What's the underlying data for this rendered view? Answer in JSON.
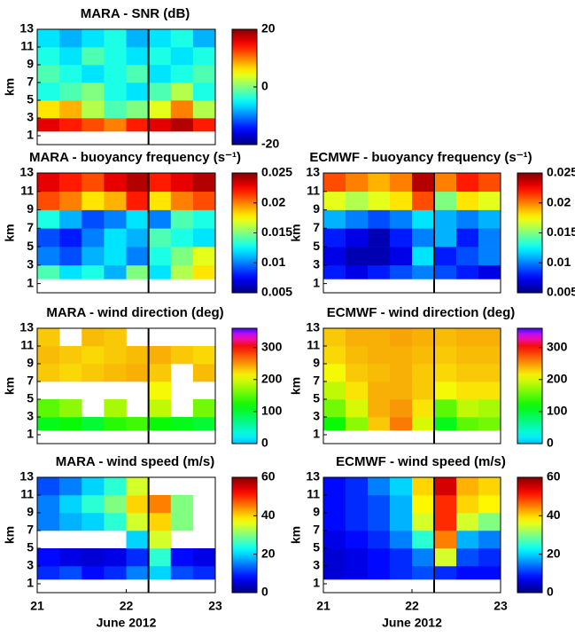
{
  "chart_data": [
    {
      "type": "heatmap",
      "title": "MARA - SNR (dB)",
      "ylabel": "km",
      "ylim": [
        0,
        13
      ],
      "yticks": [
        1,
        3,
        5,
        7,
        9,
        11,
        13
      ],
      "xlim": [
        21,
        23
      ],
      "xbins": [
        21,
        21.25,
        21.5,
        21.75,
        22,
        22.25,
        22.5,
        22.75,
        23
      ],
      "ybins": [
        1.5,
        3,
        5,
        7,
        9,
        11,
        13
      ],
      "z": [
        [
          16,
          14,
          12,
          10,
          14,
          16,
          18,
          14
        ],
        [
          6,
          8,
          2,
          -2,
          0,
          4,
          10,
          2
        ],
        [
          -4,
          -2,
          0,
          -4,
          -6,
          -2,
          2,
          -4
        ],
        [
          -2,
          -4,
          -6,
          -4,
          -2,
          -6,
          -4,
          -2
        ],
        [
          -4,
          -6,
          -2,
          -4,
          -6,
          -4,
          -6,
          -4
        ],
        [
          -6,
          -8,
          -6,
          -4,
          -8,
          -6,
          -4,
          -8
        ]
      ],
      "clim": [
        -20,
        20
      ],
      "cticks": [
        -20,
        0,
        20
      ],
      "colormap": "jet",
      "vline": 22.25
    },
    {
      "type": "heatmap",
      "title": "MARA - buoyancy frequency (s⁻¹)",
      "ylabel": "km",
      "ylim": [
        0,
        13
      ],
      "yticks": [
        1,
        3,
        5,
        7,
        9,
        11,
        13
      ],
      "xlim": [
        21,
        23
      ],
      "xbins": [
        21,
        21.25,
        21.5,
        21.75,
        22,
        22.25,
        22.5,
        22.75,
        23
      ],
      "ybins": [
        1.5,
        3,
        5,
        7,
        9,
        11,
        13
      ],
      "z": [
        [
          0.014,
          0.012,
          0.013,
          0.011,
          0.015,
          0.012,
          0.016,
          0.018
        ],
        [
          0.01,
          0.009,
          0.011,
          0.012,
          0.01,
          0.013,
          0.015,
          0.017
        ],
        [
          0.009,
          0.008,
          0.01,
          0.012,
          0.011,
          0.014,
          0.013,
          0.012
        ],
        [
          0.013,
          0.011,
          0.009,
          0.01,
          0.012,
          0.01,
          0.014,
          0.013
        ],
        [
          0.021,
          0.02,
          0.018,
          0.019,
          0.022,
          0.018,
          0.02,
          0.021
        ],
        [
          0.023,
          0.022,
          0.021,
          0.023,
          0.024,
          0.022,
          0.023,
          0.024
        ]
      ],
      "clim": [
        0.005,
        0.025
      ],
      "cticks": [
        0.005,
        0.01,
        0.015,
        0.02,
        0.025
      ],
      "colormap": "jet",
      "vline": 22.25
    },
    {
      "type": "heatmap",
      "title": "ECMWF - buoyancy frequency (s⁻¹)",
      "ylabel": "km",
      "ylim": [
        0,
        13
      ],
      "yticks": [
        1,
        3,
        5,
        7,
        9,
        11,
        13
      ],
      "xlim": [
        21,
        23
      ],
      "xbins": [
        21,
        21.25,
        21.5,
        21.75,
        22,
        22.25,
        22.5,
        22.75,
        23
      ],
      "ybins": [
        1.5,
        3,
        5,
        7,
        9,
        11,
        13
      ],
      "z": [
        [
          0.008,
          0.007,
          0.008,
          0.009,
          0.01,
          0.009,
          0.008,
          0.007
        ],
        [
          0.007,
          0.006,
          0.006,
          0.007,
          0.012,
          0.008,
          0.009,
          0.01
        ],
        [
          0.008,
          0.007,
          0.006,
          0.008,
          0.01,
          0.011,
          0.008,
          0.01
        ],
        [
          0.011,
          0.01,
          0.009,
          0.01,
          0.012,
          0.011,
          0.01,
          0.011
        ],
        [
          0.017,
          0.016,
          0.017,
          0.018,
          0.021,
          0.015,
          0.018,
          0.017
        ],
        [
          0.021,
          0.02,
          0.019,
          0.02,
          0.024,
          0.02,
          0.022,
          0.021
        ]
      ],
      "clim": [
        0.005,
        0.025
      ],
      "cticks": [
        0.005,
        0.01,
        0.015,
        0.02,
        0.025
      ],
      "colormap": "jet",
      "vline": 22.25
    },
    {
      "type": "heatmap",
      "title": "MARA - wind direction (deg)",
      "ylabel": "km",
      "ylim": [
        0,
        13
      ],
      "yticks": [
        1,
        3,
        5,
        7,
        9,
        11,
        13
      ],
      "xlim": [
        21,
        23
      ],
      "xbins": [
        21,
        21.25,
        21.5,
        21.75,
        22,
        22.25,
        22.5,
        22.75,
        23
      ],
      "ybins": [
        1.5,
        3,
        5,
        7,
        9,
        11,
        13
      ],
      "z": [
        [
          110,
          120,
          100,
          130,
          140,
          120,
          110,
          100
        ],
        [
          150,
          170,
          null,
          180,
          null,
          190,
          null,
          160
        ],
        [
          null,
          null,
          null,
          null,
          null,
          210,
          null,
          null
        ],
        [
          230,
          225,
          230,
          235,
          240,
          230,
          null,
          235
        ],
        [
          235,
          230,
          225,
          230,
          235,
          240,
          230,
          225
        ],
        [
          230,
          null,
          235,
          230,
          null,
          null,
          null,
          null
        ]
      ],
      "clim": [
        0,
        360
      ],
      "cticks": [
        0,
        100,
        200,
        300
      ],
      "colormap": "hsv-like",
      "vline": 22.25
    },
    {
      "type": "heatmap",
      "title": "ECMWF - wind direction (deg)",
      "ylabel": "km",
      "ylim": [
        0,
        13
      ],
      "yticks": [
        1,
        3,
        5,
        7,
        9,
        11,
        13
      ],
      "xlim": [
        21,
        23
      ],
      "xbins": [
        21,
        21.25,
        21.5,
        21.75,
        22,
        22.25,
        22.5,
        22.75,
        23
      ],
      "ybins": [
        1.5,
        3,
        5,
        7,
        9,
        11,
        13
      ],
      "z": [
        [
          120,
          170,
          230,
          260,
          200,
          110,
          150,
          160
        ],
        [
          160,
          200,
          240,
          250,
          220,
          150,
          190,
          180
        ],
        [
          190,
          220,
          240,
          240,
          230,
          210,
          220,
          220
        ],
        [
          210,
          230,
          235,
          240,
          230,
          225,
          230,
          230
        ],
        [
          225,
          235,
          240,
          240,
          235,
          230,
          235,
          235
        ],
        [
          230,
          240,
          240,
          245,
          240,
          235,
          240,
          240
        ]
      ],
      "clim": [
        0,
        360
      ],
      "cticks": [
        0,
        100,
        200,
        300
      ],
      "colormap": "hsv-like",
      "vline": 22.25
    },
    {
      "type": "heatmap",
      "title": "MARA - wind speed (m/s)",
      "ylabel": "km",
      "ylim": [
        0,
        13
      ],
      "yticks": [
        1,
        3,
        5,
        7,
        9,
        11,
        13
      ],
      "xlim": [
        21,
        23
      ],
      "xticks": [
        21,
        22,
        23
      ],
      "xlabel": "June 2012",
      "xbins": [
        21,
        21.25,
        21.5,
        21.75,
        22,
        22.25,
        22.5,
        22.75,
        23
      ],
      "ybins": [
        1.5,
        3,
        5,
        7,
        9,
        11,
        13
      ],
      "z": [
        [
          10,
          12,
          8,
          10,
          15,
          20,
          12,
          10
        ],
        [
          8,
          6,
          5,
          6,
          10,
          25,
          8,
          6
        ],
        [
          null,
          null,
          null,
          null,
          20,
          35,
          null,
          null
        ],
        [
          15,
          18,
          20,
          25,
          35,
          40,
          30,
          null
        ],
        [
          15,
          20,
          25,
          30,
          40,
          45,
          30,
          null
        ],
        [
          12,
          15,
          20,
          25,
          35,
          null,
          null,
          null
        ]
      ],
      "clim": [
        0,
        60
      ],
      "cticks": [
        0,
        20,
        40,
        60
      ],
      "colormap": "jet",
      "vline": 22.25
    },
    {
      "type": "heatmap",
      "title": "ECMWF - wind speed (m/s)",
      "ylabel": "km",
      "ylim": [
        0,
        13
      ],
      "yticks": [
        1,
        3,
        5,
        7,
        9,
        11,
        13
      ],
      "xlim": [
        21,
        23
      ],
      "xticks": [
        21,
        22,
        23
      ],
      "xlabel": "June 2012",
      "xbins": [
        21,
        21.25,
        21.5,
        21.75,
        22,
        22.25,
        22.5,
        22.75,
        23
      ],
      "ybins": [
        1.5,
        3,
        5,
        7,
        9,
        11,
        13
      ],
      "z": [
        [
          5,
          6,
          8,
          10,
          12,
          10,
          8,
          8
        ],
        [
          5,
          6,
          8,
          10,
          15,
          35,
          12,
          10
        ],
        [
          6,
          8,
          10,
          15,
          25,
          45,
          18,
          15
        ],
        [
          8,
          10,
          12,
          18,
          35,
          50,
          35,
          30
        ],
        [
          8,
          10,
          12,
          18,
          38,
          50,
          40,
          38
        ],
        [
          8,
          10,
          15,
          20,
          40,
          55,
          42,
          40
        ]
      ],
      "clim": [
        0,
        60
      ],
      "cticks": [
        0,
        20,
        40,
        60
      ],
      "colormap": "jet",
      "vline": 22.25
    }
  ]
}
